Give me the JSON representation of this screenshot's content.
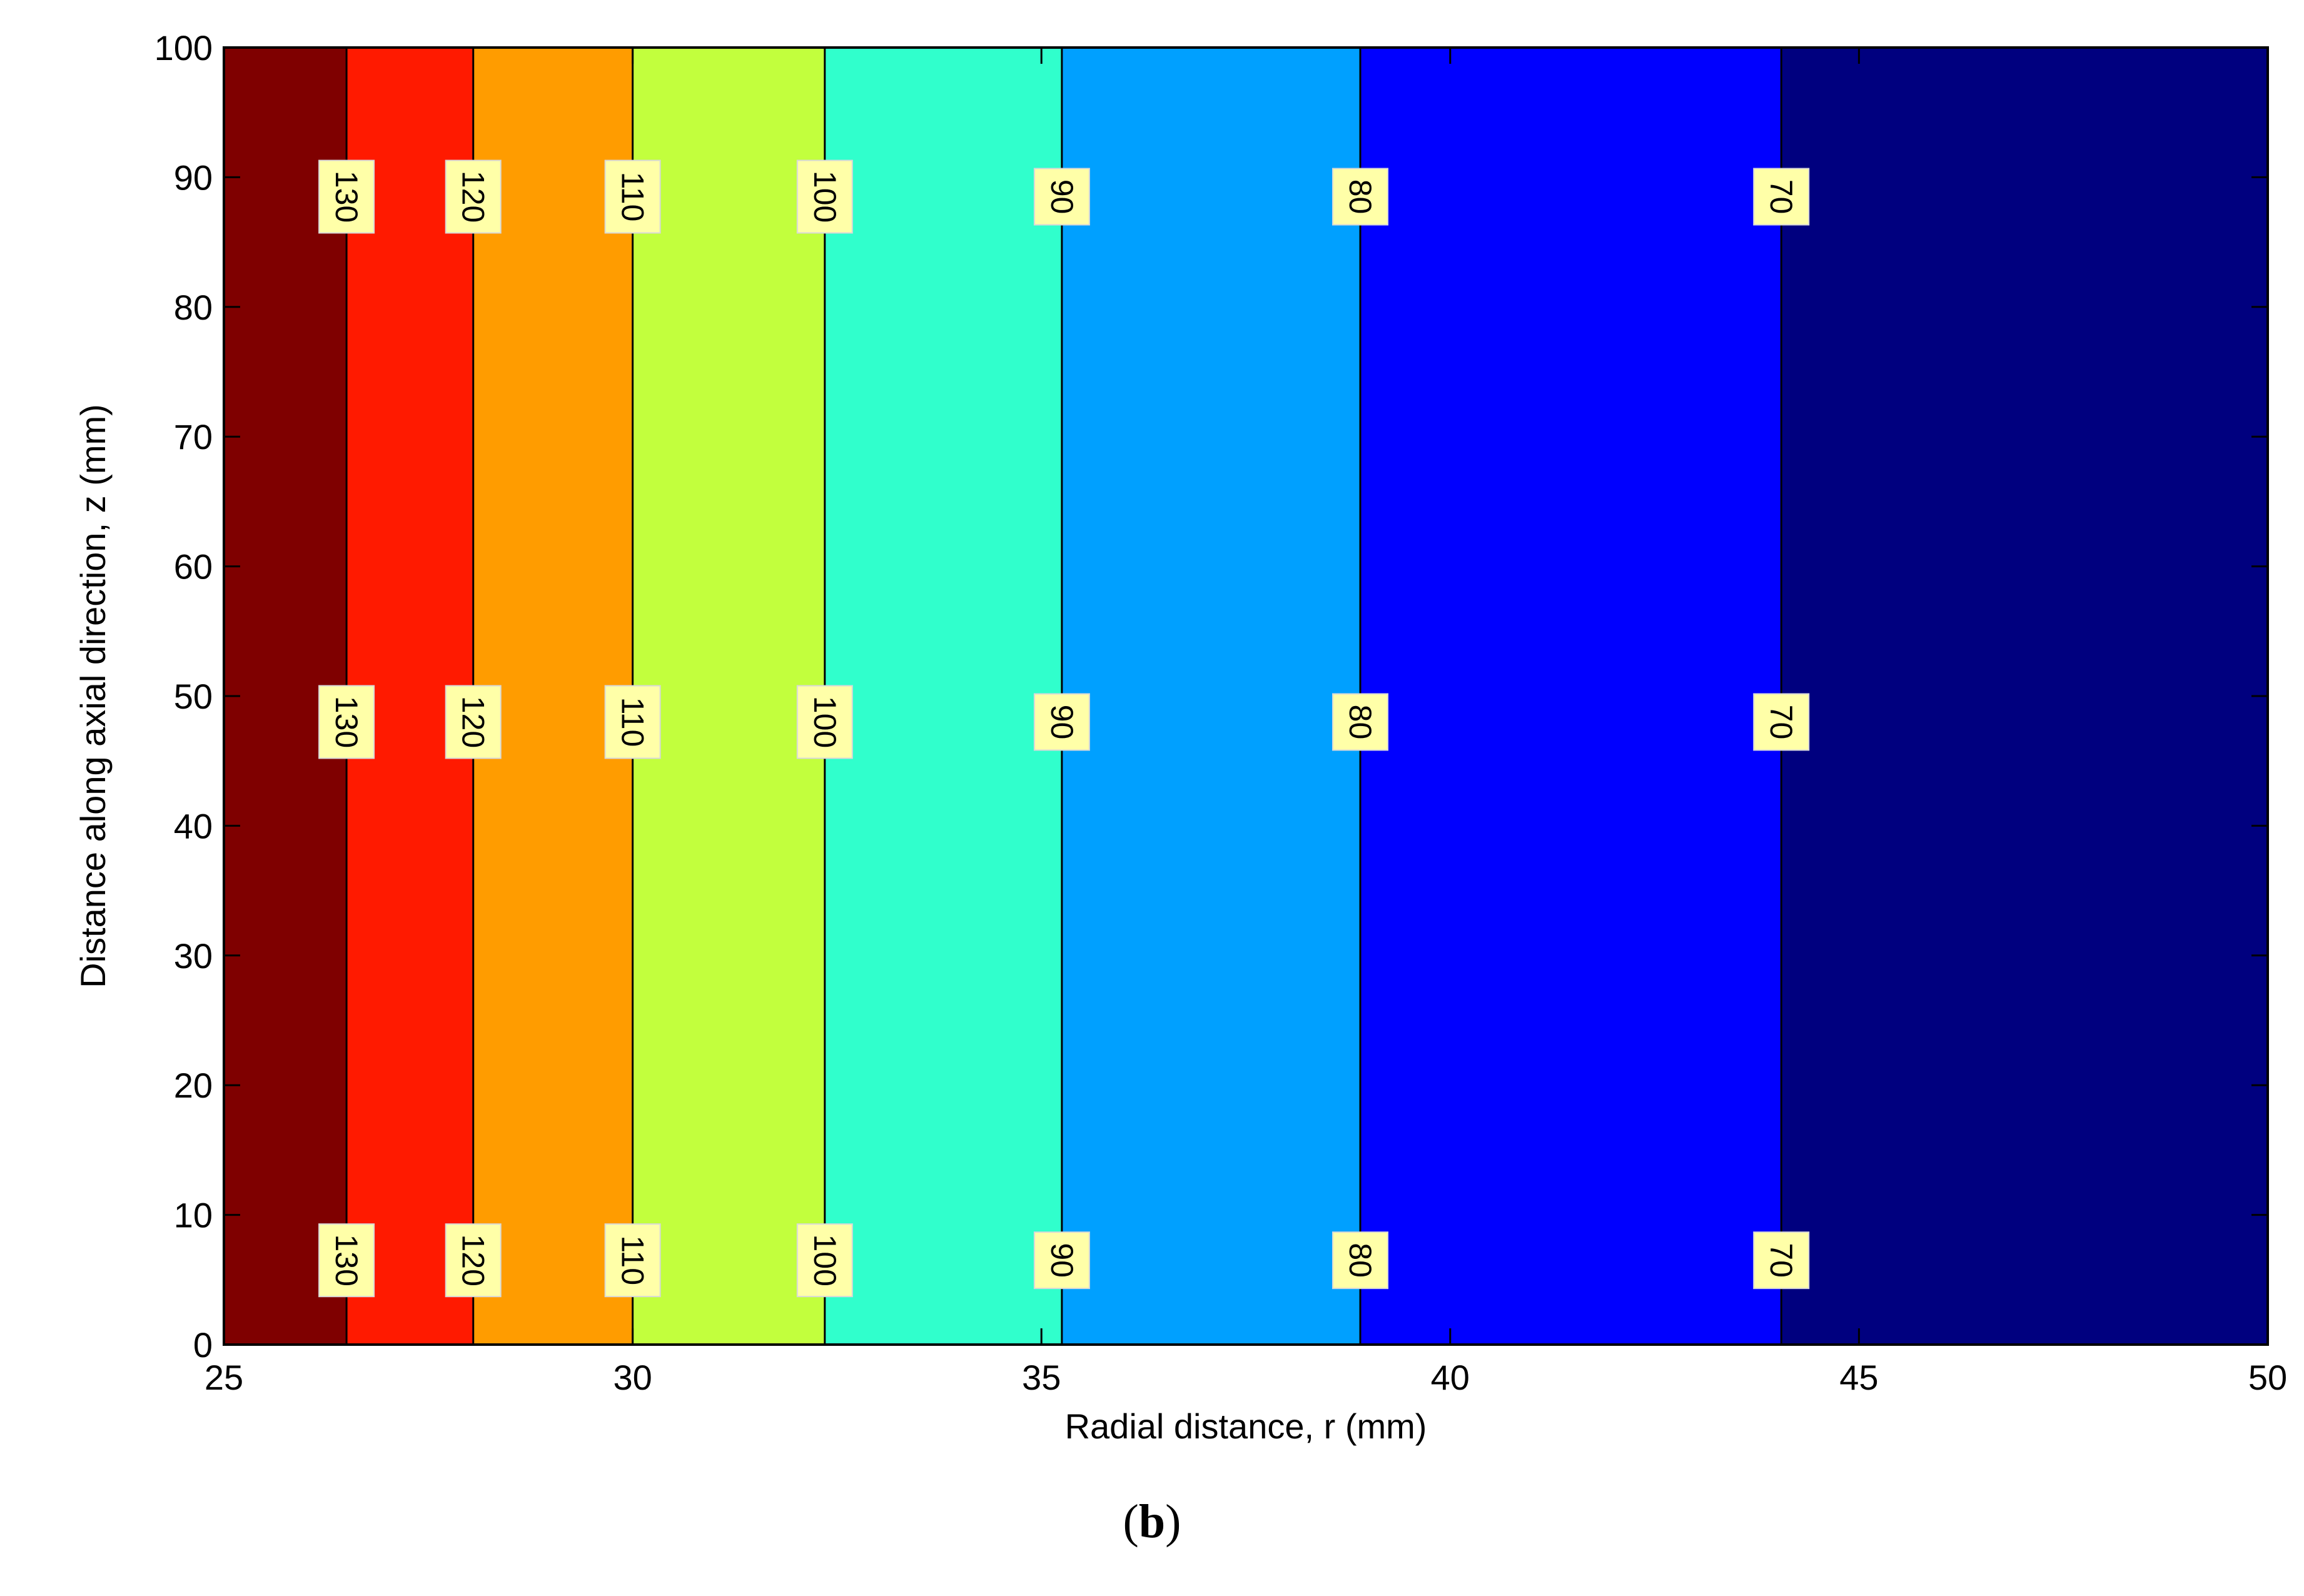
{
  "chart_data": {
    "type": "contour",
    "title": "",
    "xlabel": "Radial distance, r (mm)",
    "ylabel": "Distance along axial direction, z (mm)",
    "xlim": [
      25,
      50
    ],
    "ylim": [
      0,
      100
    ],
    "xticks": [
      "25",
      "30",
      "35",
      "40",
      "45",
      "50"
    ],
    "yticks": [
      "0",
      "10",
      "20",
      "30",
      "40",
      "50",
      "60",
      "70",
      "80",
      "90",
      "100"
    ],
    "bands": [
      {
        "x_start": 25.0,
        "x_end": 26.5,
        "color": "#7f0000"
      },
      {
        "x_start": 26.5,
        "x_end": 28.05,
        "color": "#ff1a00"
      },
      {
        "x_start": 28.05,
        "x_end": 30.0,
        "color": "#ff9c00"
      },
      {
        "x_start": 30.0,
        "x_end": 32.35,
        "color": "#c2ff3d"
      },
      {
        "x_start": 32.35,
        "x_end": 35.25,
        "color": "#30ffcc"
      },
      {
        "x_start": 35.25,
        "x_end": 38.9,
        "color": "#00a0ff"
      },
      {
        "x_start": 38.9,
        "x_end": 44.05,
        "color": "#0000ff"
      },
      {
        "x_start": 44.05,
        "x_end": 50.0,
        "color": "#00007f"
      }
    ],
    "contours": [
      {
        "level": "130",
        "x": 26.5
      },
      {
        "level": "120",
        "x": 28.05
      },
      {
        "level": "110",
        "x": 30.0
      },
      {
        "level": "100",
        "x": 32.35
      },
      {
        "level": "90",
        "x": 35.25
      },
      {
        "level": "80",
        "x": 38.9
      },
      {
        "level": "70",
        "x": 44.05
      }
    ],
    "label_z_positions": [
      88.5,
      48,
      6.5
    ],
    "grid": false,
    "legend": "none"
  },
  "caption": {
    "open": "(",
    "letter": "b",
    "close": ")"
  }
}
